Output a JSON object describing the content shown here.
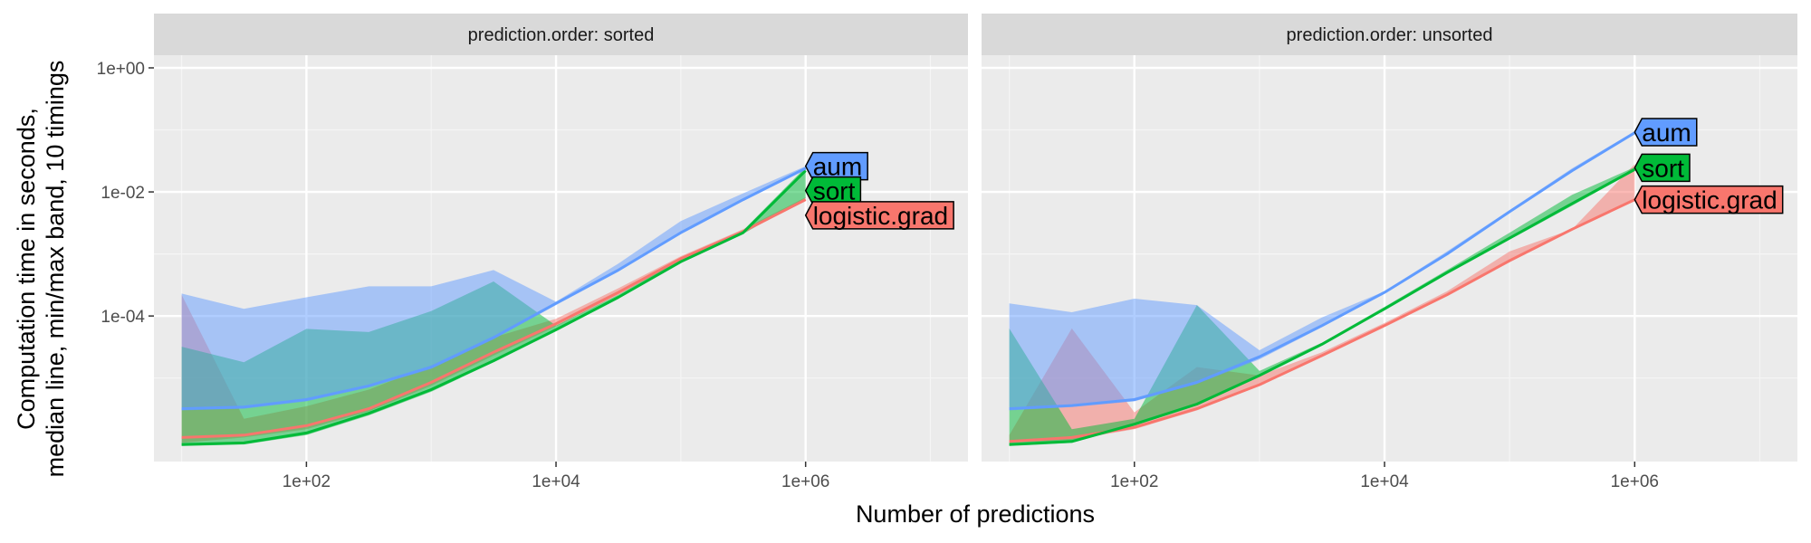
{
  "chart_data": {
    "type": "line",
    "xlabel": "Number of predictions",
    "ylabel_lines": [
      "Computation time in seconds,",
      "median line, min/max band, 10 timings"
    ],
    "x_scale": "log10",
    "y_scale": "log10",
    "xlim": [
      6,
      20000000
    ],
    "ylim": [
      4.5e-07,
      1.6
    ],
    "x_ticks": [
      100,
      10000,
      1000000
    ],
    "x_tick_labels": [
      "1e+02",
      "1e+04",
      "1e+06"
    ],
    "y_ticks": [
      0.0001,
      0.01,
      1
    ],
    "y_tick_labels": [
      "1e-04",
      "1e-02",
      "1e+00"
    ],
    "colors": {
      "aum": "#619CFF",
      "sort": "#00BA38",
      "logistic.grad": "#F8766D"
    },
    "panels": [
      {
        "strip": "prediction.order: sorted",
        "series": [
          {
            "name": "logistic.grad",
            "x": [
              10,
              31.6,
              100,
              316,
              1000,
              3160,
              10000,
              31600,
              100000,
              316000,
              1000000
            ],
            "median": [
              1.1e-06,
              1.2e-06,
              1.7e-06,
              3.2e-06,
              8.5e-06,
              2.6e-05,
              7.5e-05,
              0.00024,
              0.00084,
              0.0023,
              0.0075
            ],
            "min": [
              9e-07,
              1.1e-06,
              1.5e-06,
              2.9e-06,
              7.5e-06,
              2.3e-05,
              6.8e-05,
              0.00022,
              0.00078,
              0.0022,
              0.0072
            ],
            "max": [
              0.00022,
              2.2e-06,
              3.5e-06,
              6.5e-06,
              1.6e-05,
              4.5e-05,
              9e-05,
              0.00028,
              0.00092,
              0.0025,
              0.0082
            ]
          },
          {
            "name": "sort",
            "x": [
              10,
              31.6,
              100,
              316,
              1000,
              3160,
              10000,
              31600,
              100000,
              316000,
              1000000
            ],
            "median": [
              8.5e-07,
              9e-07,
              1.3e-06,
              2.7e-06,
              6.5e-06,
              1.9e-05,
              6e-05,
              0.0002,
              0.00075,
              0.0022,
              0.022
            ],
            "min": [
              8e-07,
              8.5e-07,
              1.2e-06,
              2.5e-06,
              6e-06,
              1.8e-05,
              5.8e-05,
              0.00019,
              0.00072,
              0.0021,
              0.008
            ],
            "max": [
              3.2e-05,
              1.8e-05,
              6.2e-05,
              5.5e-05,
              0.00012,
              0.00036,
              7e-05,
              0.00022,
              0.00082,
              0.0024,
              0.025
            ]
          },
          {
            "name": "aum",
            "x": [
              10,
              31.6,
              100,
              316,
              1000,
              3160,
              10000,
              31600,
              100000,
              316000,
              1000000
            ],
            "median": [
              3.2e-06,
              3.4e-06,
              4.5e-06,
              7.5e-06,
              1.5e-05,
              4.5e-05,
              0.00016,
              0.00055,
              0.0022,
              0.0075,
              0.024
            ],
            "min": [
              3e-06,
              3.2e-06,
              4.2e-06,
              7e-06,
              1.4e-05,
              4.2e-05,
              0.00015,
              0.00052,
              0.0021,
              0.0072,
              0.023
            ],
            "max": [
              0.00023,
              0.00013,
              0.0002,
              0.0003,
              0.0003,
              0.00055,
              0.00017,
              0.0007,
              0.0034,
              0.0095,
              0.026
            ]
          }
        ],
        "end_labels": [
          {
            "text": "aum",
            "series": "aum",
            "y": 0.026
          },
          {
            "text": "sort",
            "series": "sort",
            "y": 0.0105
          },
          {
            "text": "logistic.grad",
            "series": "logistic.grad",
            "y": 0.0042
          }
        ]
      },
      {
        "strip": "prediction.order: unsorted",
        "series": [
          {
            "name": "logistic.grad",
            "x": [
              10,
              31.6,
              100,
              316,
              1000,
              3160,
              10000,
              31600,
              100000,
              316000,
              1000000
            ],
            "median": [
              9.5e-07,
              1.1e-06,
              1.6e-06,
              3.2e-06,
              7.8e-06,
              2.3e-05,
              7e-05,
              0.00022,
              0.00078,
              0.0025,
              0.0075
            ],
            "min": [
              9e-07,
              1e-06,
              1.5e-06,
              3e-06,
              7.5e-06,
              2.2e-05,
              6.8e-05,
              0.00021,
              0.00075,
              0.0024,
              0.0072
            ],
            "max": [
              1.2e-06,
              6.3e-05,
              2.8e-06,
              1.5e-05,
              1.1e-05,
              2.6e-05,
              7.7e-05,
              0.00025,
              0.0011,
              0.0025,
              0.028
            ]
          },
          {
            "name": "sort",
            "x": [
              10,
              31.6,
              100,
              316,
              1000,
              3160,
              10000,
              31600,
              100000,
              316000,
              1000000
            ],
            "median": [
              8.5e-07,
              9.5e-07,
              1.8e-06,
              3.8e-06,
              1.1e-05,
              3.5e-05,
              0.00013,
              0.0005,
              0.0018,
              0.0065,
              0.023
            ],
            "min": [
              8e-07,
              9e-07,
              1.7e-06,
              3.6e-06,
              1.05e-05,
              3.4e-05,
              0.000125,
              0.00048,
              0.0017,
              0.006,
              0.022
            ],
            "max": [
              6.3e-05,
              1.5e-06,
              2.2e-06,
              0.00015,
              1.3e-05,
              3.7e-05,
              0.00014,
              0.00055,
              0.0022,
              0.009,
              0.025
            ]
          },
          {
            "name": "aum",
            "x": [
              10,
              31.6,
              100,
              316,
              1000,
              3160,
              10000,
              31600,
              100000,
              316000,
              1000000
            ],
            "median": [
              3.2e-06,
              3.6e-06,
              4.5e-06,
              8.5e-06,
              2.2e-05,
              7e-05,
              0.00024,
              0.001,
              0.0048,
              0.022,
              0.09
            ],
            "min": [
              3e-06,
              3.4e-06,
              4.2e-06,
              8e-06,
              2e-05,
              6.6e-05,
              0.00023,
              0.00095,
              0.0046,
              0.021,
              0.088
            ],
            "max": [
              0.00016,
              0.000115,
              0.00019,
              0.00015,
              2.8e-05,
              9.5e-05,
              0.00025,
              0.0011,
              0.0051,
              0.024,
              0.095
            ]
          }
        ],
        "end_labels": [
          {
            "text": "aum",
            "series": "aum",
            "y": 0.092
          },
          {
            "text": "sort",
            "series": "sort",
            "y": 0.0245
          },
          {
            "text": "logistic.grad",
            "series": "logistic.grad",
            "y": 0.0075
          }
        ]
      }
    ]
  }
}
